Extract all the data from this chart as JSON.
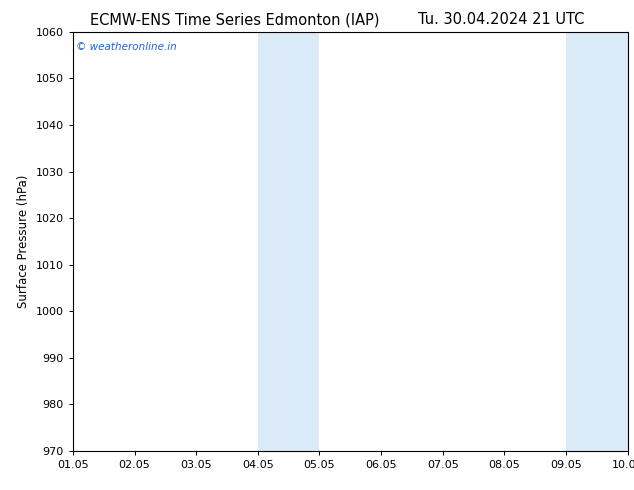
{
  "title_left": "ECMW-ENS Time Series Edmonton (IAP)",
  "title_right": "Tu. 30.04.2024 21 UTC",
  "ylabel": "Surface Pressure (hPa)",
  "watermark": "© weatheronline.in",
  "xlim": [
    0,
    9
  ],
  "ylim": [
    970,
    1060
  ],
  "yticks": [
    970,
    980,
    990,
    1000,
    1010,
    1020,
    1030,
    1040,
    1050,
    1060
  ],
  "xtick_positions": [
    0,
    1,
    2,
    3,
    4,
    5,
    6,
    7,
    8,
    9
  ],
  "xtick_labels": [
    "01.05",
    "02.05",
    "03.05",
    "04.05",
    "05.05",
    "06.05",
    "07.05",
    "08.05",
    "09.05",
    "10.05"
  ],
  "shaded_regions": [
    {
      "xstart": 3,
      "xend": 4,
      "color": "#dbeaf7"
    },
    {
      "xstart": 8,
      "xend": 9,
      "color": "#dbeaf7"
    }
  ],
  "bg_color": "#ffffff",
  "plot_bg_color": "#ffffff",
  "title_fontsize": 10.5,
  "label_fontsize": 8.5,
  "tick_fontsize": 8,
  "watermark_color": "#2266cc",
  "border_color": "#000000"
}
